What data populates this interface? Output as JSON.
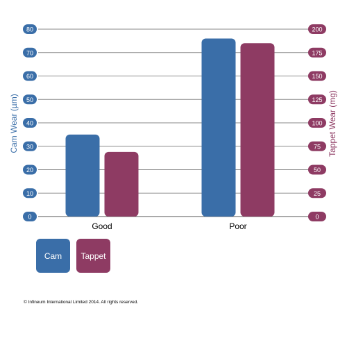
{
  "chart_data": {
    "type": "bar",
    "categories": [
      "Good",
      "Poor"
    ],
    "series": [
      {
        "name": "Cam",
        "axis": "left",
        "color": "#3a6ea8",
        "values": [
          35,
          76
        ]
      },
      {
        "name": "Tappet",
        "axis": "right",
        "color": "#8e3b63",
        "values": [
          69,
          185
        ]
      }
    ],
    "ylabel_left": "Cam Wear (µm)",
    "ylabel_right": "Tappet Wear (mg)",
    "ylim_left": [
      0,
      80
    ],
    "ylim_right": [
      0,
      200
    ],
    "yticks_left": [
      "0",
      "10",
      "20",
      "30",
      "40",
      "50",
      "60",
      "70",
      "80"
    ],
    "yticks_right": [
      "0",
      "25",
      "50",
      "75",
      "100",
      "125",
      "150",
      "175",
      "200"
    ],
    "grid": true,
    "legend_position": "bottom-left"
  },
  "legend": {
    "cam": "Cam",
    "tappet": "Tappet"
  },
  "copyright": "© Infineum International Limited 2014.  All rights reserved."
}
